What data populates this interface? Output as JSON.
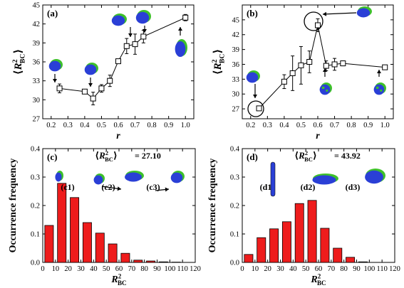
{
  "chart_data": [
    {
      "panel": "(a)",
      "type": "scatter",
      "xlabel": "r",
      "ylabel": "⟨R²BC⟩",
      "xlim": [
        0.15,
        1.05
      ],
      "ylim": [
        27,
        45
      ],
      "xticks": [
        "0.2",
        "0.3",
        "0.4",
        "0.5",
        "0.6",
        "0.7",
        "0.8",
        "0.9",
        "1.0"
      ],
      "yticks": [
        "27",
        "30",
        "33",
        "36",
        "39",
        "42",
        "45"
      ],
      "x": [
        0.25,
        0.4,
        0.45,
        0.5,
        0.55,
        0.6,
        0.65,
        0.7,
        0.75,
        1.0
      ],
      "y": [
        31.8,
        31.3,
        30.2,
        31.8,
        33.0,
        36.1,
        38.5,
        38.8,
        40.0,
        43.0
      ],
      "err": [
        0.7,
        0.3,
        1.0,
        0.6,
        0.9,
        0.3,
        1.2,
        1.6,
        1.0,
        0.5
      ]
    },
    {
      "panel": "(b)",
      "type": "scatter",
      "xlabel": "r",
      "ylabel": "⟨R²BC⟩",
      "xlim": [
        0.15,
        1.05
      ],
      "ylim": [
        25,
        48
      ],
      "xticks": [
        "0.2",
        "0.3",
        "0.4",
        "0.5",
        "0.6",
        "0.7",
        "0.8",
        "0.9",
        "1.0"
      ],
      "yticks": [
        "27",
        "30",
        "33",
        "36",
        "39",
        "42",
        "45"
      ],
      "x": [
        0.25,
        0.4,
        0.45,
        0.5,
        0.55,
        0.6,
        0.65,
        0.7,
        0.75,
        1.0
      ],
      "y": [
        27.1,
        32.5,
        34.2,
        35.8,
        36.5,
        43.9,
        35.7,
        36.0,
        36.2,
        35.4
      ],
      "err": [
        0.3,
        1.4,
        3.5,
        3.8,
        2.2,
        1.3,
        1.0,
        1.2,
        0.5,
        0.3
      ]
    },
    {
      "panel": "(c)",
      "type": "bar",
      "title": "⟨R²BC⟩ = 27.10",
      "xlabel": "R²BC",
      "ylabel": "Occurrence frequency",
      "xlim": [
        0,
        120
      ],
      "ylim": [
        0,
        0.4
      ],
      "xticks": [
        "0",
        "10",
        "20",
        "30",
        "40",
        "50",
        "60",
        "70",
        "80",
        "90",
        "100",
        "110",
        "120"
      ],
      "yticks": [
        "0.0",
        "0.1",
        "0.2",
        "0.3",
        "0.4"
      ],
      "x": [
        5,
        15,
        25,
        35,
        45,
        55,
        65,
        75,
        85,
        95,
        105
      ],
      "values": [
        0.13,
        0.278,
        0.228,
        0.14,
        0.103,
        0.065,
        0.032,
        0.008,
        0.005,
        0.002,
        0.001
      ],
      "labels": [
        "(c1)",
        "(c2)",
        "(c3)"
      ]
    },
    {
      "panel": "(d)",
      "type": "bar",
      "title": "⟨R²BC⟩ = 43.92",
      "xlabel": "R²BC",
      "ylabel": "Occurrence frequency",
      "xlim": [
        0,
        120
      ],
      "ylim": [
        0,
        0.4
      ],
      "xticks": [
        "0",
        "10",
        "20",
        "30",
        "40",
        "50",
        "60",
        "70",
        "80",
        "90",
        "100",
        "110",
        "120"
      ],
      "yticks": [
        "0.0",
        "0.1",
        "0.2",
        "0.3",
        "0.4"
      ],
      "x": [
        5,
        15,
        25,
        35,
        45,
        55,
        65,
        75,
        85,
        95
      ],
      "values": [
        0.028,
        0.087,
        0.118,
        0.143,
        0.207,
        0.218,
        0.12,
        0.05,
        0.018,
        0.002
      ],
      "labels": [
        "(d1)",
        "(d2)",
        "(d3)"
      ]
    }
  ],
  "colors": {
    "bar": "#ee1c1c",
    "marker": "#ffffff",
    "line": "#000000",
    "blob_blue": "#2a3fd6",
    "blob_green": "#3ec12a"
  }
}
